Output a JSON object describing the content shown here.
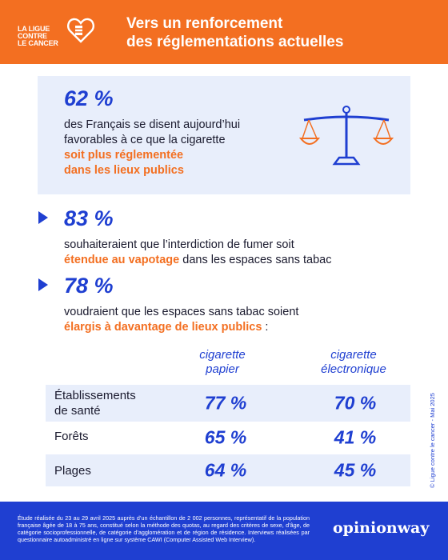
{
  "header": {
    "logo_lines": [
      "LA LIGUE",
      "CONTRE",
      "LE CANCER"
    ],
    "title_line1": "Vers un renforcement",
    "title_line2": "des réglementations actuelles"
  },
  "stat1": {
    "percent": "62 %",
    "line1": "des Français se disent aujourd’hui",
    "line2": "favorables à ce que la cigarette",
    "line3_highlight": "soit plus réglementée",
    "line4_highlight": "dans les lieux publics",
    "icon": "scale-icon"
  },
  "stat2": {
    "percent": "83 %",
    "line1": "souhaiteraient que l’interdiction de fumer soit",
    "line2_highlight": "étendue au vapotage",
    "line2_rest": " dans les espaces sans tabac"
  },
  "stat3": {
    "percent": "78 %",
    "line1": "voudraient que les espaces sans tabac soient",
    "line2_highlight": "élargis à davantage de lieux publics",
    "line2_rest": " :"
  },
  "table": {
    "columns": [
      {
        "line1": "cigarette",
        "line2": "papier"
      },
      {
        "line1": "cigarette",
        "line2": "électronique"
      }
    ],
    "rows": [
      {
        "label_line1": "Établissements",
        "label_line2": "de santé",
        "paper": "77 %",
        "electronic": "70 %"
      },
      {
        "label_line1": "Forêts",
        "paper": "65 %",
        "electronic": "41 %"
      },
      {
        "label_line1": "Plages",
        "paper": "64 %",
        "electronic": "45 %"
      }
    ]
  },
  "credit": "© Ligue contre le cancer - Mai 2025",
  "footer": {
    "note": "Étude réalisée du 23 au 29 avril 2025 auprès d’un échantillon de 2 002 personnes, représentatif de la population française âgée de 18 à 75 ans, constitué selon la méthode des quotas, au regard des critères de sexe, d’âge, de catégorie socioprofessionnelle, de catégorie d’agglomération et de région de résidence. Interviews réalisées par questionnaire autoadministré en ligne sur système CAWI (Computer Assisted Web Interview).",
    "brand": "opinionway"
  },
  "colors": {
    "orange": "#f36f21",
    "blue": "#1f3fd1",
    "light_blue": "#e8eefb"
  }
}
